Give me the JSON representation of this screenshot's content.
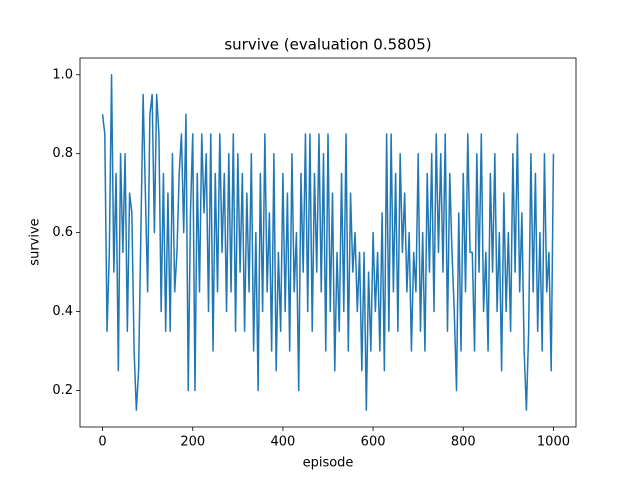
{
  "chart_data": {
    "type": "line",
    "title": "survive (evaluation 0.5805)",
    "xlabel": "episode",
    "ylabel": "survive",
    "color": "#1f77b4",
    "x": [
      0,
      5,
      10,
      15,
      20,
      25,
      30,
      35,
      40,
      45,
      50,
      55,
      60,
      65,
      70,
      75,
      80,
      85,
      90,
      95,
      100,
      105,
      110,
      115,
      120,
      125,
      130,
      135,
      140,
      145,
      150,
      155,
      160,
      165,
      170,
      175,
      180,
      185,
      190,
      195,
      200,
      205,
      210,
      215,
      220,
      225,
      230,
      235,
      240,
      245,
      250,
      255,
      260,
      265,
      270,
      275,
      280,
      285,
      290,
      295,
      300,
      305,
      310,
      315,
      320,
      325,
      330,
      335,
      340,
      345,
      350,
      355,
      360,
      365,
      370,
      375,
      380,
      385,
      390,
      395,
      400,
      405,
      410,
      415,
      420,
      425,
      430,
      435,
      440,
      445,
      450,
      455,
      460,
      465,
      470,
      475,
      480,
      485,
      490,
      495,
      500,
      505,
      510,
      515,
      520,
      525,
      530,
      535,
      540,
      545,
      550,
      555,
      560,
      565,
      570,
      575,
      580,
      585,
      590,
      595,
      600,
      605,
      610,
      615,
      620,
      625,
      630,
      635,
      640,
      645,
      650,
      655,
      660,
      665,
      670,
      675,
      680,
      685,
      690,
      695,
      700,
      705,
      710,
      715,
      720,
      725,
      730,
      735,
      740,
      745,
      750,
      755,
      760,
      765,
      770,
      775,
      780,
      785,
      790,
      795,
      800,
      805,
      810,
      815,
      820,
      825,
      830,
      835,
      840,
      845,
      850,
      855,
      860,
      865,
      870,
      875,
      880,
      885,
      890,
      895,
      900,
      905,
      910,
      915,
      920,
      925,
      930,
      935,
      940,
      945,
      950,
      955,
      960,
      965,
      970,
      975,
      980,
      985,
      990,
      995,
      1000
    ],
    "values": [
      0.9,
      0.85,
      0.35,
      0.55,
      1.0,
      0.5,
      0.75,
      0.25,
      0.8,
      0.55,
      0.8,
      0.35,
      0.7,
      0.65,
      0.3,
      0.15,
      0.25,
      0.6,
      0.95,
      0.7,
      0.45,
      0.9,
      0.95,
      0.6,
      0.95,
      0.85,
      0.4,
      0.75,
      0.35,
      0.7,
      0.35,
      0.8,
      0.45,
      0.55,
      0.75,
      0.85,
      0.6,
      0.9,
      0.2,
      0.65,
      0.85,
      0.2,
      0.75,
      0.45,
      0.85,
      0.65,
      0.8,
      0.4,
      0.85,
      0.3,
      0.75,
      0.45,
      0.85,
      0.55,
      0.75,
      0.4,
      0.8,
      0.45,
      0.85,
      0.35,
      0.8,
      0.5,
      0.75,
      0.35,
      0.7,
      0.45,
      0.8,
      0.3,
      0.6,
      0.2,
      0.75,
      0.4,
      0.85,
      0.45,
      0.65,
      0.3,
      0.8,
      0.25,
      0.55,
      0.35,
      0.75,
      0.4,
      0.7,
      0.3,
      0.8,
      0.45,
      0.6,
      0.2,
      0.75,
      0.5,
      0.85,
      0.4,
      0.85,
      0.35,
      0.75,
      0.5,
      0.85,
      0.45,
      0.8,
      0.3,
      0.85,
      0.4,
      0.7,
      0.25,
      0.55,
      0.35,
      0.75,
      0.4,
      0.85,
      0.3,
      0.7,
      0.5,
      0.6,
      0.4,
      0.55,
      0.25,
      0.55,
      0.15,
      0.5,
      0.3,
      0.6,
      0.4,
      0.55,
      0.3,
      0.65,
      0.25,
      0.85,
      0.35,
      0.85,
      0.45,
      0.75,
      0.35,
      0.8,
      0.55,
      0.7,
      0.45,
      0.6,
      0.3,
      0.55,
      0.45,
      0.8,
      0.35,
      0.6,
      0.3,
      0.75,
      0.5,
      0.8,
      0.4,
      0.85,
      0.55,
      0.8,
      0.5,
      0.85,
      0.35,
      0.75,
      0.55,
      0.4,
      0.2,
      0.65,
      0.3,
      0.75,
      0.45,
      0.85,
      0.55,
      0.55,
      0.3,
      0.8,
      0.5,
      0.85,
      0.4,
      0.55,
      0.3,
      0.75,
      0.5,
      0.8,
      0.4,
      0.6,
      0.25,
      0.7,
      0.4,
      0.6,
      0.35,
      0.8,
      0.5,
      0.85,
      0.45,
      0.65,
      0.3,
      0.15,
      0.35,
      0.8,
      0.45,
      0.75,
      0.35,
      0.6,
      0.3,
      0.8,
      0.45,
      0.55,
      0.25,
      0.8
    ],
    "xlim": [
      -50,
      1050
    ],
    "ylim": [
      0.1075,
      1.0425
    ],
    "xticks": [
      0,
      200,
      400,
      600,
      800,
      1000
    ],
    "yticks": [
      0.2,
      0.4,
      0.6,
      0.8,
      {
        "value": 1,
        "label": "1.0"
      }
    ]
  }
}
